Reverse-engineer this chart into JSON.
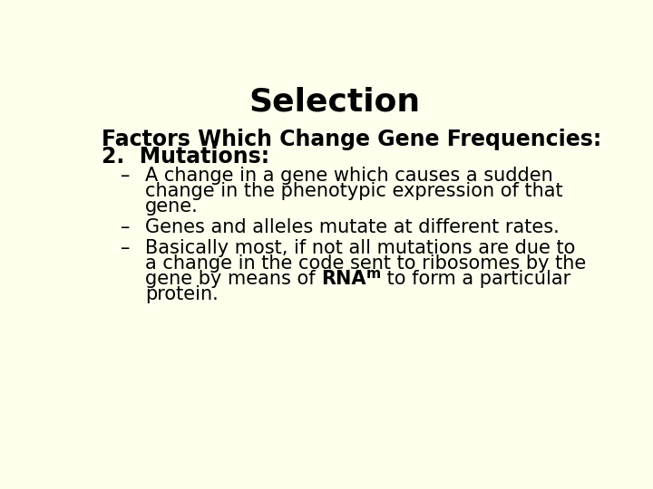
{
  "background_color": "#ffffee",
  "title": "Selection",
  "title_fontsize": 26,
  "title_color": "#000000",
  "subtitle_line1": "Factors Which Change Gene Frequencies:",
  "subtitle_line2": "2.  Mutations:",
  "subtitle_fontsize": 17,
  "subtitle_color": "#000000",
  "bullet_fontsize": 15,
  "bullet_color": "#000000",
  "bullet_marker": "–",
  "b1_line1": "A change in a gene which causes a sudden",
  "b1_line2": "change in the phenotypic expression of that",
  "b1_line3": "gene.",
  "b2_line1": "Genes and alleles mutate at different rates.",
  "b3_line1": "Basically most, if not all mutations are due to",
  "b3_line2": "a change in the code sent to ribosomes by the",
  "b3_line3_pre": "gene by means of ",
  "b3_line3_bold": "RNA",
  "b3_line3_sub": "m",
  "b3_line3_post": " to form a particular",
  "b3_line4": "protein."
}
